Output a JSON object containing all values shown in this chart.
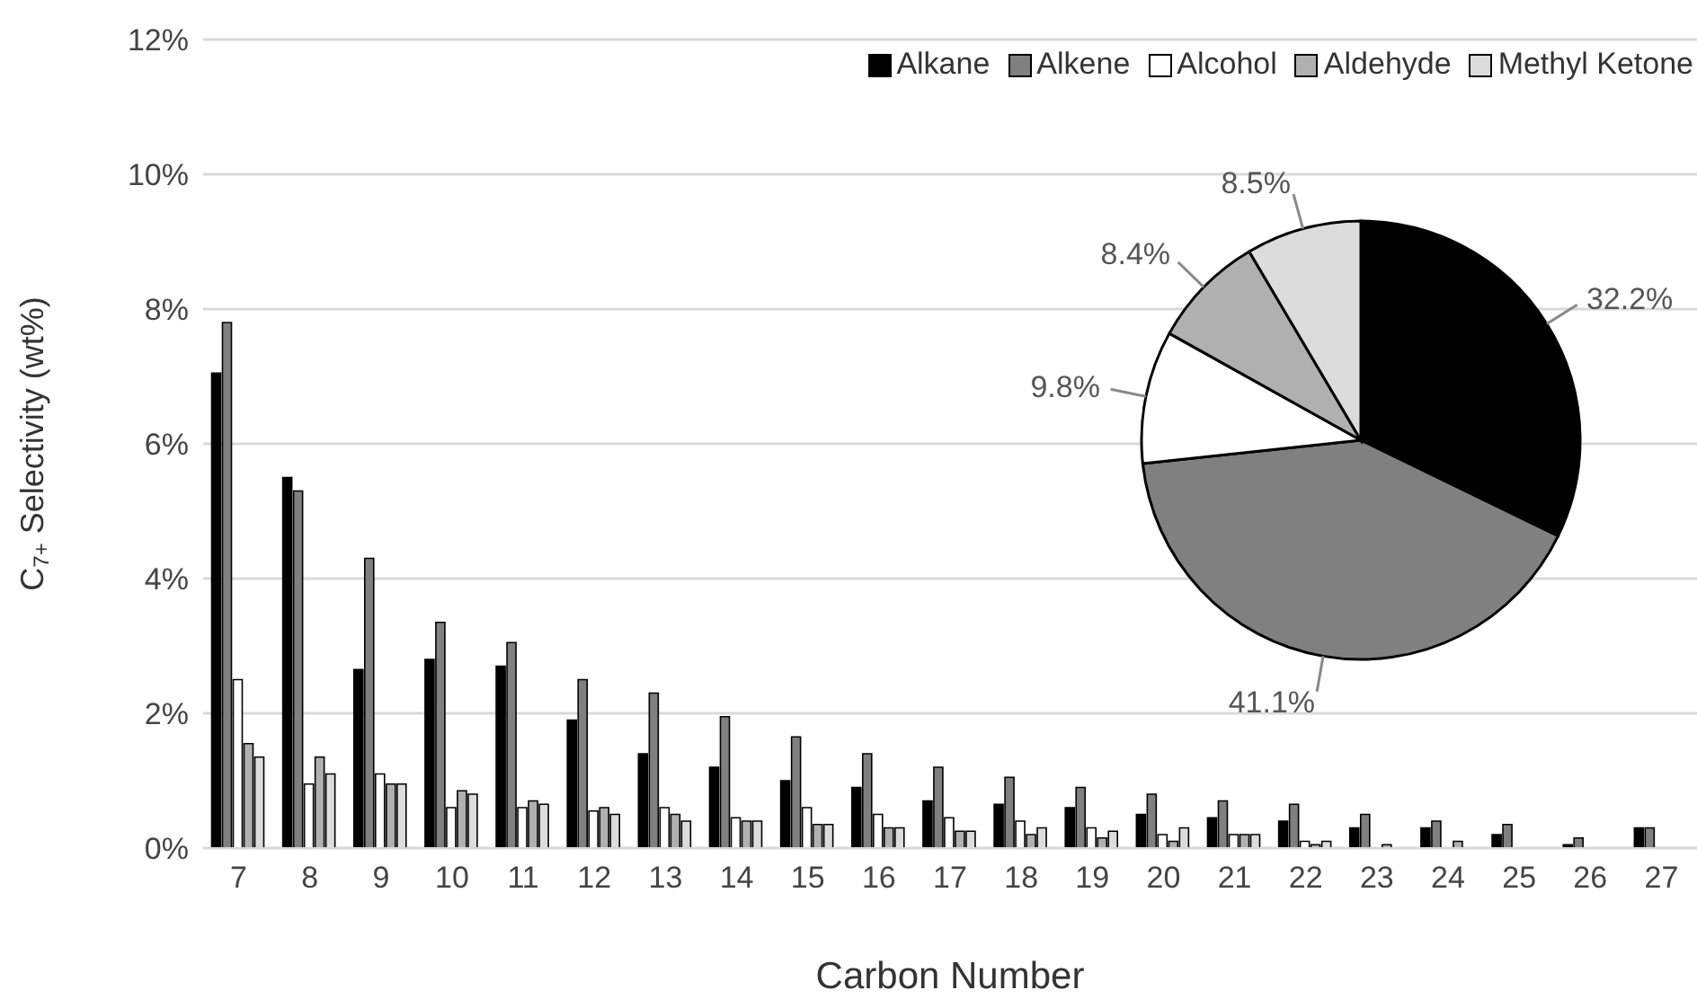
{
  "chart_data": [
    {
      "type": "bar",
      "xlabel": "Carbon Number",
      "ylabel": "C$_{7+}$ Selectivity (wt%)",
      "categories": [
        "7",
        "8",
        "9",
        "10",
        "11",
        "12",
        "13",
        "14",
        "15",
        "16",
        "17",
        "18",
        "19",
        "20",
        "21",
        "22",
        "23",
        "24",
        "25",
        "26",
        "27"
      ],
      "series": [
        {
          "name": "Alkane",
          "color": "#000000",
          "values": [
            7.05,
            5.5,
            2.65,
            2.8,
            2.7,
            1.9,
            1.4,
            1.2,
            1.0,
            0.9,
            0.7,
            0.65,
            0.6,
            0.5,
            0.45,
            0.4,
            0.3,
            0.3,
            0.2,
            0.05,
            0.3
          ]
        },
        {
          "name": "Alkene",
          "color": "#808080",
          "values": [
            7.8,
            5.3,
            4.3,
            3.35,
            3.05,
            2.5,
            2.3,
            1.95,
            1.65,
            1.4,
            1.2,
            1.05,
            0.9,
            0.8,
            0.7,
            0.65,
            0.5,
            0.4,
            0.35,
            0.15,
            0.3
          ]
        },
        {
          "name": "Alcohol",
          "color": "#ffffff",
          "values": [
            2.5,
            0.95,
            1.1,
            0.6,
            0.6,
            0.55,
            0.6,
            0.45,
            0.6,
            0.5,
            0.45,
            0.4,
            0.3,
            0.2,
            0.2,
            0.1,
            0,
            0,
            0,
            0,
            0
          ]
        },
        {
          "name": "Aldehyde",
          "color": "#b0b0b0",
          "values": [
            1.55,
            1.35,
            0.95,
            0.85,
            0.7,
            0.6,
            0.5,
            0.4,
            0.35,
            0.3,
            0.25,
            0.2,
            0.15,
            0.1,
            0.2,
            0.05,
            0.05,
            0.1,
            0,
            0,
            0
          ]
        },
        {
          "name": "Methyl Ketone",
          "color": "#dcdcdc",
          "values": [
            1.35,
            1.1,
            0.95,
            0.8,
            0.65,
            0.5,
            0.4,
            0.4,
            0.35,
            0.3,
            0.25,
            0.3,
            0.25,
            0.3,
            0.2,
            0.1,
            0,
            0,
            0,
            0,
            0
          ]
        }
      ],
      "ylim": [
        0,
        12
      ],
      "yticks": [
        {
          "value": 0,
          "label": "0%"
        },
        {
          "value": 2,
          "label": "2%"
        },
        {
          "value": 4,
          "label": "4%"
        },
        {
          "value": 6,
          "label": "6%"
        },
        {
          "value": 8,
          "label": "8%"
        },
        {
          "value": 10,
          "label": "10%"
        },
        {
          "value": 12,
          "label": "12%"
        }
      ],
      "grid": "y",
      "legend": "top right"
    },
    {
      "type": "pie",
      "values": [
        32.2,
        41.1,
        9.8,
        8.4,
        8.5
      ],
      "colors": [
        "#000000",
        "#808080",
        "#ffffff",
        "#b0b0b0",
        "#dcdcdc"
      ],
      "value_labels": [
        "32.2%",
        "41.1%",
        "9.8%",
        "8.4%",
        "8.5%"
      ]
    }
  ]
}
